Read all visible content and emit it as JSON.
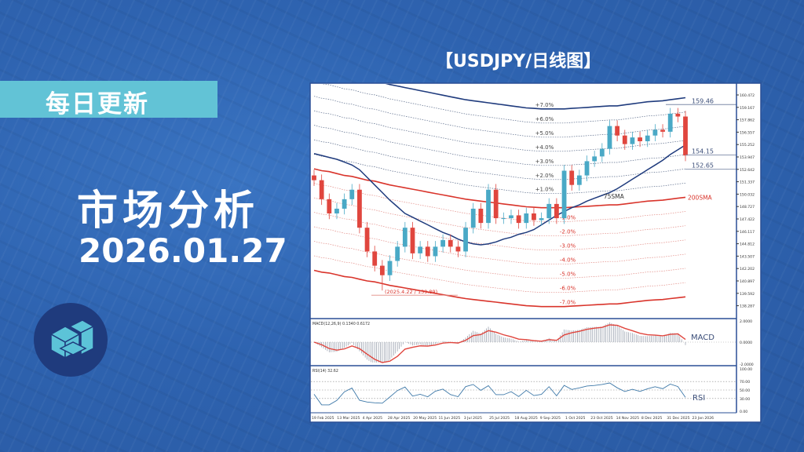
{
  "left": {
    "badge": "每日更新",
    "headline": "市场分析",
    "date": "2026.01.27",
    "logo_icon": "isometric-cube-logo-icon"
  },
  "title": "【USDJPY/日线图】",
  "colors": {
    "background": "#2e63b0",
    "badge": "#62c3d6",
    "bull": "#4aa9c6",
    "bear": "#e0463e",
    "sma75": "#1f3b7d",
    "sma200": "#d9342b",
    "logo_circle": "#1f3b7d"
  },
  "chart_data": {
    "type": "candlestick",
    "symbol": "USDJPY",
    "interval_note": "日线图",
    "ylim": [
      137.6,
      161.1
    ],
    "y_ticks": [
      "160.472",
      "159.167",
      "157.862",
      "156.557",
      "155.252",
      "153.947",
      "152.642",
      "151.337",
      "150.032",
      "148.727",
      "147.422",
      "146.117",
      "144.812",
      "143.507",
      "142.202",
      "140.897",
      "139.592",
      "138.287"
    ],
    "x_ticks": [
      "19 Feb 2025",
      "13 Mar 2025",
      "4 Apr 2025",
      "28 Apr 2025",
      "20 May 2025",
      "11 Jun 2025",
      "3 Jul 2025",
      "25 Jul 2025",
      "18 Aug 2025",
      "9 Sep 2025",
      "1 Oct 2025",
      "23 Oct 2025",
      "14 Nov 2025",
      "8 Dec 2025",
      "31 Dec 2025",
      "23 Jan 2026"
    ],
    "close": [
      151.5,
      149.5,
      148.0,
      148.5,
      149.5,
      150.5,
      146.5,
      144.0,
      142.5,
      141.5,
      143.0,
      144.5,
      146.5,
      143.8,
      144.5,
      143.5,
      144.5,
      145.2,
      144.5,
      144.0,
      146.5,
      148.5,
      147.0,
      150.5,
      147.5,
      147.5,
      147.8,
      147.0,
      148.0,
      147.3,
      147.5,
      149.0,
      147.5,
      152.5,
      151.0,
      152.0,
      153.5,
      154.0,
      154.8,
      157.2,
      156.2,
      155.3,
      156.0,
      155.6,
      156.2,
      156.8,
      156.6,
      158.5,
      158.2,
      154.1
    ],
    "sma75": [
      154.3,
      154.1,
      153.9,
      153.7,
      153.4,
      153.1,
      152.6,
      151.8,
      151.0,
      150.2,
      149.4,
      148.7,
      148.0,
      147.6,
      147.2,
      146.8,
      146.4,
      146.0,
      145.7,
      145.3,
      145.0,
      144.8,
      144.7,
      144.8,
      145.0,
      145.3,
      145.5,
      145.8,
      146.0,
      146.3,
      146.8,
      147.3,
      147.8,
      148.2,
      148.6,
      148.9,
      149.3,
      149.6,
      149.9,
      150.2,
      150.6,
      151.1,
      151.6,
      152.1,
      152.6,
      153.1,
      153.6,
      154.2,
      154.7,
      155.2
    ],
    "sma200": [
      152.7,
      152.5,
      152.4,
      152.2,
      152.0,
      151.9,
      151.7,
      151.5,
      151.4,
      151.2,
      151.0,
      150.85,
      150.7,
      150.55,
      150.4,
      150.25,
      150.1,
      149.95,
      149.8,
      149.65,
      149.5,
      149.4,
      149.3,
      149.2,
      149.1,
      149.0,
      148.9,
      148.8,
      148.7,
      148.65,
      148.6,
      148.6,
      148.6,
      148.6,
      148.65,
      148.7,
      148.75,
      148.8,
      148.85,
      148.9,
      148.9,
      149.0,
      149.1,
      149.2,
      149.3,
      149.35,
      149.4,
      149.5,
      149.6,
      149.7
    ],
    "envelope_pcts": [
      7,
      6,
      5,
      4,
      3,
      2,
      1,
      -1,
      -2,
      -3,
      -4,
      -5,
      -6,
      -7
    ],
    "envelope_labels": [
      "+7.0%",
      "+6.0%",
      "+5.0%",
      "+4.0%",
      "+3.0%",
      "+2.0%",
      "+1.0%",
      "-1.0%",
      "-2.0%",
      "-3.0%",
      "-4.0%",
      "-5.0%",
      "-6.0%",
      "-7.0%"
    ],
    "sma75_label": "75SMA",
    "sma200_label": "200SMA",
    "price_lines": [
      {
        "value": 159.46,
        "label": "159.46"
      },
      {
        "value": 154.15,
        "label": "154.15"
      },
      {
        "value": 152.65,
        "label": "152.65"
      }
    ],
    "low_annotation": {
      "value": 139.89,
      "label": "(2025.4.22 / 139.89)"
    },
    "macd": {
      "header": "MACD(12,26,9) 0.1340 0.6172",
      "label": "MACD",
      "ylim": [
        -2,
        2
      ],
      "y_ticks": [
        "2.0000",
        "0.0000",
        "-2.0000"
      ]
    },
    "rsi": {
      "header": "RSI(14) 32.62",
      "label": "RSI",
      "ylim": [
        0,
        100
      ],
      "levels": [
        70,
        50,
        30
      ],
      "y_ticks": [
        "100.00",
        "70.00",
        "50.00",
        "30.00",
        "0.00"
      ]
    }
  }
}
